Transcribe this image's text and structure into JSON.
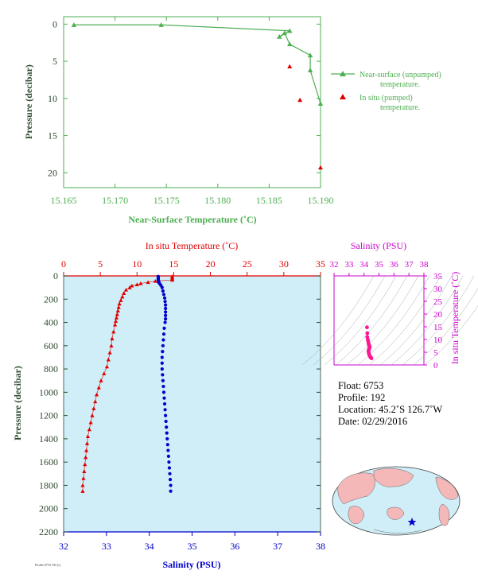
{
  "colors": {
    "green": "#4caf50",
    "red": "#e00000",
    "blue": "#0000cc",
    "magenta": "#cc00cc",
    "pink": "#ff1493",
    "axis_text": "#2e4a2e",
    "ocean": "#cfeef8"
  },
  "chart_data": [
    {
      "type": "line",
      "xlabel": "Near-Surface Temperature (˚C)",
      "ylabel": "Pressure (decibar)",
      "xlim": [
        15.165,
        15.19
      ],
      "ylim": [
        22,
        -1
      ],
      "x_ticks": [
        "15.165",
        "15.170",
        "15.175",
        "15.180",
        "15.185",
        "15.190"
      ],
      "y_ticks": [
        "0",
        "5",
        "10",
        "15",
        "20"
      ],
      "legend_position": "right",
      "legend": [
        {
          "line1": "Near-surface (unpumped)",
          "line2": "temperature."
        },
        {
          "line1": "In situ (pumped)",
          "line2": "temperature."
        }
      ],
      "series": [
        {
          "name": "Near-surface (unpumped) temperature.",
          "points": [
            [
              15.166,
              0.1
            ],
            [
              15.1745,
              0.1
            ],
            [
              15.187,
              0.9
            ],
            [
              15.186,
              1.7
            ],
            [
              15.1865,
              1.2
            ],
            [
              15.187,
              2.7
            ],
            [
              15.189,
              4.2
            ],
            [
              15.189,
              6.2
            ],
            [
              15.19,
              10.7
            ]
          ]
        },
        {
          "name": "In situ (pumped) temperature.",
          "points": [
            [
              15.187,
              5.7
            ],
            [
              15.188,
              10.2
            ],
            [
              15.19,
              19.3
            ]
          ]
        }
      ]
    },
    {
      "type": "scatter",
      "title_top": "In situ Temperature (˚C)",
      "xlabel_bottom": "Salinity (PSU)",
      "ylabel": "Pressure (decibar)",
      "temp_lim": [
        0,
        35
      ],
      "sal_lim": [
        32,
        38
      ],
      "ylim": [
        2200,
        0
      ],
      "temp_ticks": [
        "0",
        "5",
        "10",
        "15",
        "20",
        "25",
        "30",
        "35"
      ],
      "sal_ticks": [
        "32",
        "33",
        "34",
        "35",
        "36",
        "37",
        "38"
      ],
      "y_ticks": [
        "0",
        "200",
        "400",
        "600",
        "800",
        "1000",
        "1200",
        "1400",
        "1600",
        "1800",
        "2000",
        "2200"
      ],
      "temperature_profile": [
        [
          14.8,
          5
        ],
        [
          14.8,
          15
        ],
        [
          14.8,
          25
        ],
        [
          14.8,
          35
        ],
        [
          12.5,
          45
        ],
        [
          11.5,
          55
        ],
        [
          10.5,
          65
        ],
        [
          10,
          75
        ],
        [
          9.3,
          85
        ],
        [
          9,
          100
        ],
        [
          8.5,
          120
        ],
        [
          8.2,
          150
        ],
        [
          8,
          180
        ],
        [
          7.8,
          210
        ],
        [
          7.6,
          240
        ],
        [
          7.5,
          270
        ],
        [
          7.4,
          300
        ],
        [
          7.3,
          330
        ],
        [
          7.2,
          360
        ],
        [
          7.1,
          390
        ],
        [
          7,
          420
        ],
        [
          6.8,
          480
        ],
        [
          6.6,
          540
        ],
        [
          6.5,
          600
        ],
        [
          6.3,
          660
        ],
        [
          6.1,
          720
        ],
        [
          5.9,
          780
        ],
        [
          5.5,
          840
        ],
        [
          5.1,
          900
        ],
        [
          4.8,
          960
        ],
        [
          4.5,
          1020
        ],
        [
          4.3,
          1080
        ],
        [
          4.1,
          1140
        ],
        [
          3.9,
          1200
        ],
        [
          3.7,
          1260
        ],
        [
          3.5,
          1320
        ],
        [
          3.3,
          1380
        ],
        [
          3.2,
          1440
        ],
        [
          3.1,
          1500
        ],
        [
          3,
          1560
        ],
        [
          2.9,
          1620
        ],
        [
          2.8,
          1680
        ],
        [
          2.7,
          1740
        ],
        [
          2.6,
          1800
        ],
        [
          2.6,
          1850
        ]
      ],
      "salinity_profile": [
        [
          34.21,
          5
        ],
        [
          34.21,
          15
        ],
        [
          34.21,
          25
        ],
        [
          34.21,
          35
        ],
        [
          34.22,
          45
        ],
        [
          34.22,
          55
        ],
        [
          34.24,
          65
        ],
        [
          34.27,
          80
        ],
        [
          34.3,
          100
        ],
        [
          34.32,
          130
        ],
        [
          34.34,
          160
        ],
        [
          34.36,
          190
        ],
        [
          34.37,
          220
        ],
        [
          34.38,
          250
        ],
        [
          34.38,
          280
        ],
        [
          34.38,
          310
        ],
        [
          34.38,
          340
        ],
        [
          34.38,
          370
        ],
        [
          34.37,
          400
        ],
        [
          34.35,
          450
        ],
        [
          34.34,
          500
        ],
        [
          34.33,
          550
        ],
        [
          34.32,
          600
        ],
        [
          34.31,
          650
        ],
        [
          34.3,
          700
        ],
        [
          34.3,
          750
        ],
        [
          34.3,
          800
        ],
        [
          34.31,
          850
        ],
        [
          34.32,
          900
        ],
        [
          34.33,
          950
        ],
        [
          34.34,
          1000
        ],
        [
          34.35,
          1050
        ],
        [
          34.36,
          1100
        ],
        [
          34.37,
          1150
        ],
        [
          34.38,
          1200
        ],
        [
          34.39,
          1250
        ],
        [
          34.4,
          1300
        ],
        [
          34.41,
          1350
        ],
        [
          34.42,
          1400
        ],
        [
          34.43,
          1450
        ],
        [
          34.44,
          1500
        ],
        [
          34.45,
          1550
        ],
        [
          34.46,
          1600
        ],
        [
          34.47,
          1650
        ],
        [
          34.48,
          1700
        ],
        [
          34.49,
          1750
        ],
        [
          34.5,
          1800
        ],
        [
          34.5,
          1850
        ]
      ]
    },
    {
      "type": "scatter",
      "title_top": "Salinity (PSU)",
      "ylabel_right": "In situ Temperature (˚C)",
      "sal_lim": [
        32,
        38
      ],
      "temp_lim": [
        0,
        35
      ],
      "sal_ticks": [
        "32",
        "33",
        "34",
        "35",
        "36",
        "37",
        "38"
      ],
      "temp_ticks": [
        "0",
        "5",
        "10",
        "15",
        "20",
        "25",
        "30",
        "35"
      ],
      "ts_points": [
        [
          34.2,
          14.8
        ],
        [
          34.22,
          12.5
        ],
        [
          34.22,
          11
        ],
        [
          34.25,
          10
        ],
        [
          34.28,
          9.3
        ],
        [
          34.3,
          8.5
        ],
        [
          34.32,
          8
        ],
        [
          34.35,
          7.6
        ],
        [
          34.37,
          7.3
        ],
        [
          34.38,
          7
        ],
        [
          34.36,
          6.6
        ],
        [
          34.33,
          6.2
        ],
        [
          34.31,
          5.8
        ],
        [
          34.3,
          5.2
        ],
        [
          34.32,
          4.6
        ],
        [
          34.35,
          4
        ],
        [
          34.38,
          3.6
        ],
        [
          34.41,
          3.3
        ],
        [
          34.44,
          3
        ],
        [
          34.47,
          2.8
        ],
        [
          34.5,
          2.6
        ]
      ]
    }
  ],
  "float_info": {
    "float": "Float:  6753",
    "profile": "Profile:  192",
    "location": "Location:  45.2˚S  126.7˚W",
    "date": "Date:  02/29/2016"
  },
  "footer_code": "Profile 6753 192 (c)",
  "map": {
    "marker_icon": "star-icon"
  }
}
